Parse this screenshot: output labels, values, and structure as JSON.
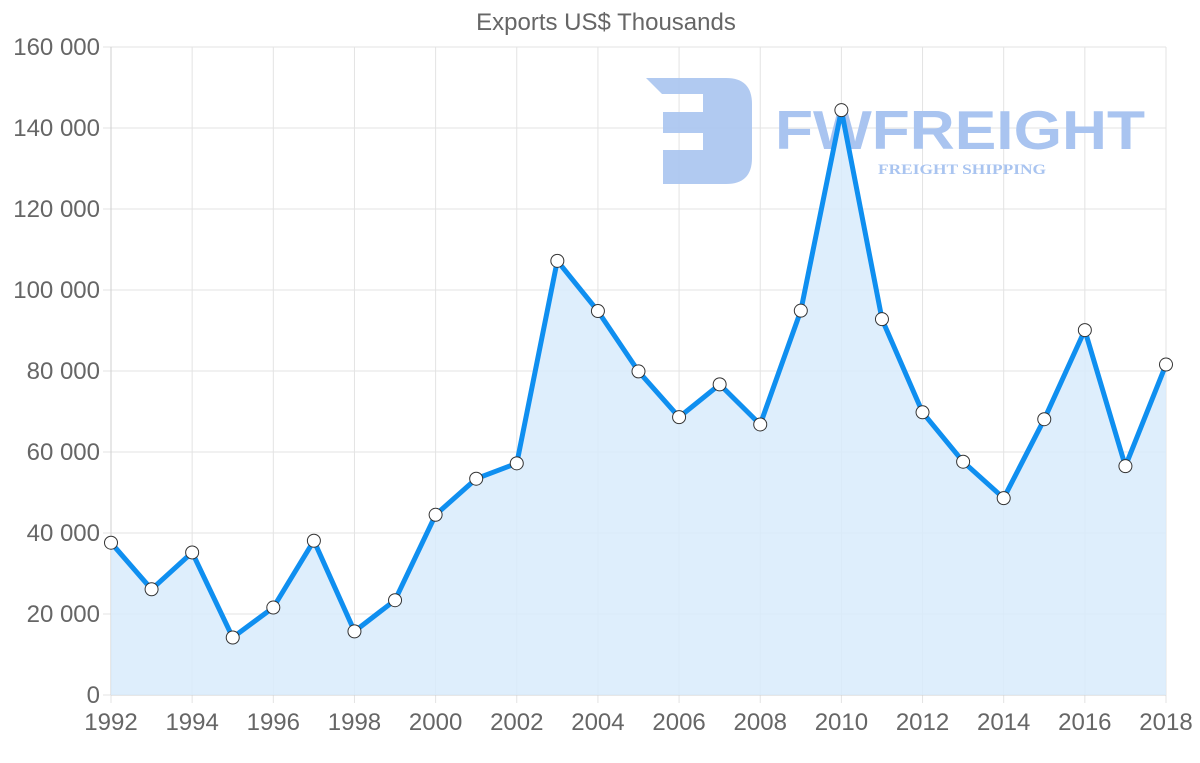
{
  "chart_data": {
    "type": "line",
    "title": "Exports US$ Thousands",
    "xlabel": "",
    "ylabel": "",
    "x": [
      1992,
      1993,
      1994,
      1995,
      1996,
      1997,
      1998,
      1999,
      2000,
      2001,
      2002,
      2003,
      2004,
      2005,
      2006,
      2007,
      2008,
      2009,
      2010,
      2011,
      2012,
      2013,
      2014,
      2015,
      2016,
      2017,
      2018
    ],
    "series": [
      {
        "name": "Exports US$ Thousands",
        "values": [
          37600,
          26100,
          35200,
          14200,
          21600,
          38100,
          15700,
          23400,
          44500,
          53400,
          57200,
          107200,
          94800,
          79900,
          68600,
          76700,
          66800,
          94900,
          144400,
          92800,
          69800,
          57600,
          48600,
          68100,
          90100,
          56500,
          81600
        ]
      }
    ],
    "xlim": [
      1992,
      2018
    ],
    "ylim": [
      0,
      160000
    ],
    "x_ticks": [
      "1992",
      "1994",
      "1996",
      "1998",
      "2000",
      "2002",
      "2004",
      "2006",
      "2008",
      "2010",
      "2012",
      "2014",
      "2016",
      "2018"
    ],
    "y_ticks": [
      "0",
      "20 000",
      "40 000",
      "60 000",
      "80 000",
      "100 000",
      "120 000",
      "140 000",
      "160 000"
    ],
    "grid": true,
    "filled_area": true,
    "legend": "none",
    "colors": {
      "line": "#0f8ff0",
      "fill": "#d8ebfc",
      "grid": "#e3e3e3",
      "text": "#666666",
      "marker_fill": "#ffffff",
      "marker_stroke": "#333333"
    }
  },
  "watermark": {
    "brand": "FWFREIGHT",
    "tagline": "FREIGHT SHIPPING",
    "color": "#a9c4f0"
  }
}
